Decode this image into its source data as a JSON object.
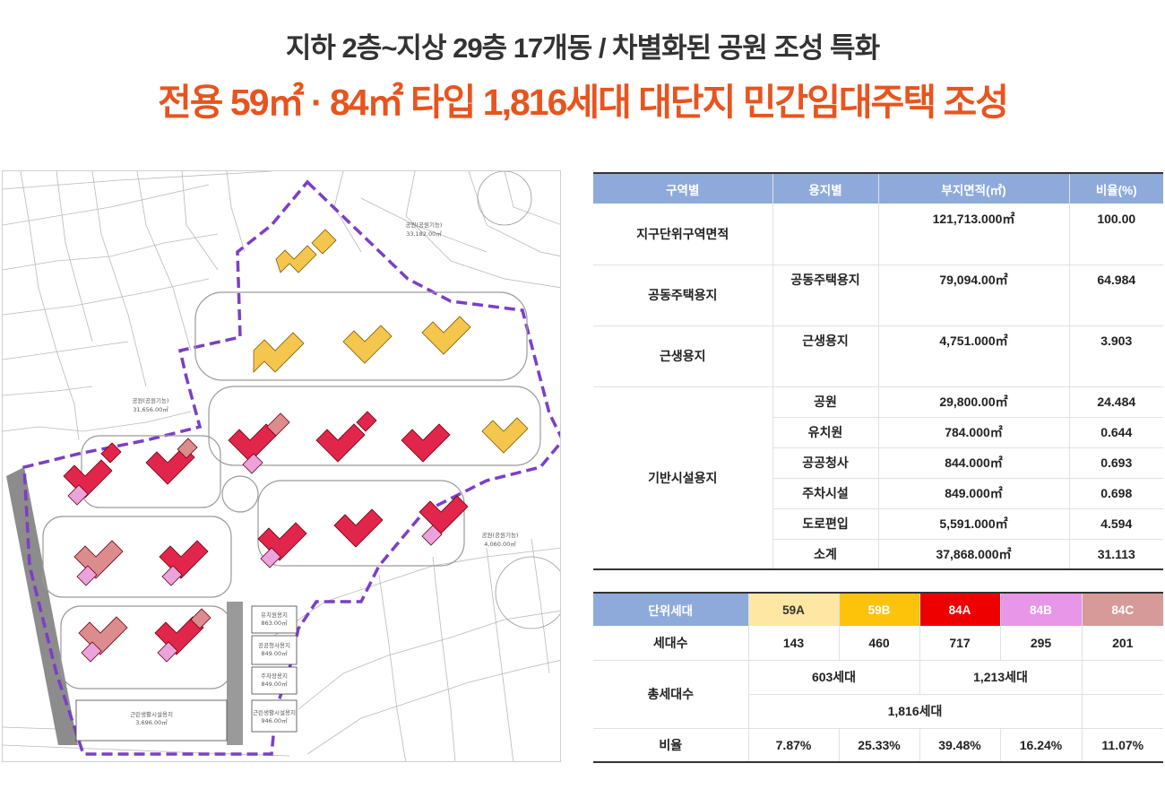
{
  "header": {
    "line1": "지하 2층~지상 29층 17개동 / 차별화된 공원 조성 특화",
    "line2": "전용 59㎡ · 84㎡ 타입 1,816세대 대단지 민간임대주택 조성"
  },
  "site_map": {
    "labels": {
      "park_north": "공원(공원기능)",
      "park_north_area": "33,182.00㎡",
      "park_west": "공원(공원기능)",
      "park_west_area": "31,656.00㎡",
      "park_east": "공원(공원기능)",
      "park_east_area": "4,060.00㎡",
      "kindergarten": "유치원용지",
      "kindergarten_area": "863.00㎡",
      "public_office": "공공청사용지",
      "public_office_area": "849.00㎡",
      "parking": "주차장용지",
      "parking_area": "849.00㎡",
      "neighborhood_west": "근린생활시설용지",
      "neighborhood_west_area": "3,696.00㎡",
      "neighborhood_east": "근린생활시설용지",
      "neighborhood_east_area": "946.00㎡"
    },
    "colors": {
      "boundary": "#7b3fc4",
      "type_59": "#f4c64e",
      "type_84a": "#e2264b",
      "type_84b": "#eaa3dc",
      "type_84c": "#dc8c8c"
    }
  },
  "area_table": {
    "headers": [
      "구역별",
      "용지별",
      "부지면적(㎡)",
      "비율(%)"
    ],
    "total_zone": "지구단위구역면적",
    "total_area": "121,713.000㎡",
    "total_ratio": "100.00",
    "housing_zone": "공동주택용지",
    "housing_use": "공동주택용지",
    "housing_area": "79,094.00㎡",
    "housing_ratio": "64.984",
    "commercial_zone": "근생용지",
    "commercial_use": "근생용지",
    "commercial_area": "4,751.000㎡",
    "commercial_ratio": "3.903",
    "infra_zone": "기반시설용지",
    "infra_rows": [
      {
        "use": "공원",
        "area": "29,800.00㎡",
        "ratio": "24.484"
      },
      {
        "use": "유치원",
        "area": "784.000㎡",
        "ratio": "0.644"
      },
      {
        "use": "공공청사",
        "area": "844.000㎡",
        "ratio": "0.693"
      },
      {
        "use": "주차시설",
        "area": "849.000㎡",
        "ratio": "0.698"
      },
      {
        "use": "도로편입",
        "area": "5,591.000㎡",
        "ratio": "4.594"
      },
      {
        "use": "소계",
        "area": "37,868.000㎡",
        "ratio": "31.113"
      }
    ]
  },
  "unit_table": {
    "header_label": "단위세대",
    "types": [
      {
        "name": "59A",
        "color": "#fde7a2",
        "text_color": "#333333"
      },
      {
        "name": "59B",
        "color": "#fdc30b",
        "text_color": "#ffffff"
      },
      {
        "name": "84A",
        "color": "#ee0000",
        "text_color": "#ffffff"
      },
      {
        "name": "84B",
        "color": "#e896e8",
        "text_color": "#ffffff"
      },
      {
        "name": "84C",
        "color": "#d69a98",
        "text_color": "#ffffff"
      }
    ],
    "count_label": "세대수",
    "counts": [
      "143",
      "460",
      "717",
      "295",
      "201"
    ],
    "total_label": "총세대수",
    "subtotal_59": "603세대",
    "subtotal_84": "1,213세대",
    "grand_total": "1,816세대",
    "ratio_label": "비율",
    "ratios": [
      "7.87%",
      "25.33%",
      "39.48%",
      "16.24%",
      "11.07%"
    ]
  }
}
